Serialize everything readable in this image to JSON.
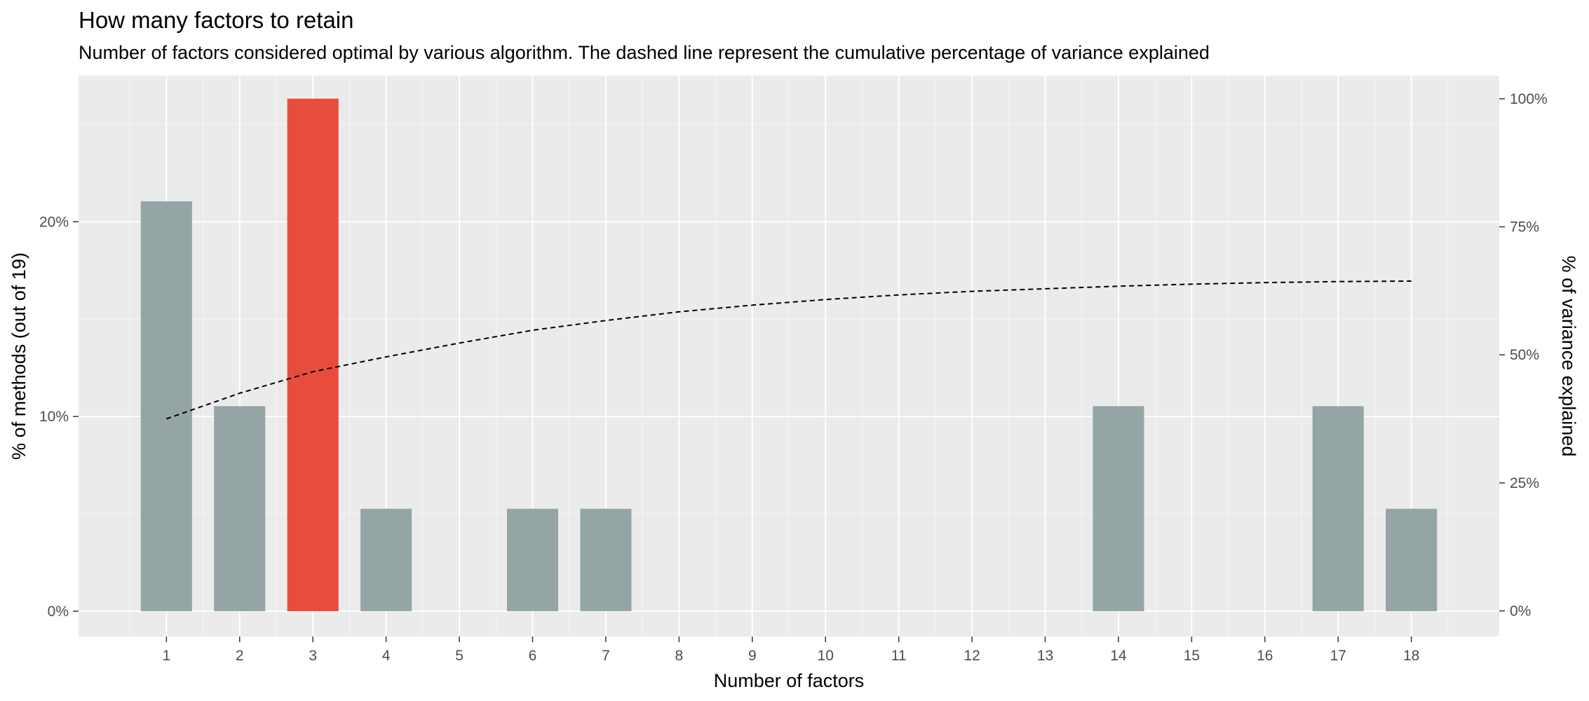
{
  "colors": {
    "panel": "#ebebeb",
    "grid_major": "#ffffff",
    "bar_default": "#95a5a6",
    "bar_highlight": "#e74c3c",
    "line": "#000000"
  },
  "chart_data": {
    "type": "bar",
    "title": "How many factors to retain",
    "subtitle": "Number of factors considered optimal by various algorithm. The dashed line represent the cumulative percentage of variance explained",
    "xlabel": "Number of factors",
    "ylabel": "% of methods (out of 19)",
    "y2label": "% of variance explained",
    "x_ticks": [
      "1",
      "2",
      "3",
      "4",
      "5",
      "6",
      "7",
      "8",
      "9",
      "10",
      "11",
      "12",
      "13",
      "14",
      "15",
      "16",
      "17",
      "18"
    ],
    "bars": [
      {
        "x": 1,
        "value": 21.05,
        "highlight": false
      },
      {
        "x": 2,
        "value": 10.53,
        "highlight": false
      },
      {
        "x": 3,
        "value": 26.32,
        "highlight": true
      },
      {
        "x": 4,
        "value": 5.26,
        "highlight": false
      },
      {
        "x": 6,
        "value": 5.26,
        "highlight": false
      },
      {
        "x": 7,
        "value": 5.26,
        "highlight": false
      },
      {
        "x": 14,
        "value": 10.53,
        "highlight": false
      },
      {
        "x": 17,
        "value": 10.53,
        "highlight": false
      },
      {
        "x": 18,
        "value": 5.26,
        "highlight": false
      }
    ],
    "y_ticks": [
      {
        "value": 0,
        "label": "0%"
      },
      {
        "value": 10,
        "label": "10%"
      },
      {
        "value": 20,
        "label": "20%"
      }
    ],
    "y2_ticks": [
      {
        "value": 0,
        "label": "0%"
      },
      {
        "value": 25,
        "label": "25%"
      },
      {
        "value": 50,
        "label": "50%"
      },
      {
        "value": 75,
        "label": "75%"
      },
      {
        "value": 100,
        "label": "100%"
      }
    ],
    "cumulative_variance": {
      "x": [
        1,
        2,
        3,
        4,
        5,
        6,
        7,
        8,
        9,
        10,
        11,
        12,
        13,
        14,
        15,
        16,
        17,
        18
      ],
      "values": [
        37.5,
        42.5,
        46.7,
        49.6,
        52.3,
        54.8,
        56.7,
        58.4,
        59.7,
        60.8,
        61.7,
        62.4,
        62.9,
        63.4,
        63.8,
        64.1,
        64.3,
        64.4
      ],
      "style": "dashed"
    },
    "xlim": [
      -0.2,
      19.2
    ],
    "ylim": [
      -1.3,
      27.5
    ],
    "y2lim": [
      -5,
      104.5
    ],
    "grid": true
  }
}
